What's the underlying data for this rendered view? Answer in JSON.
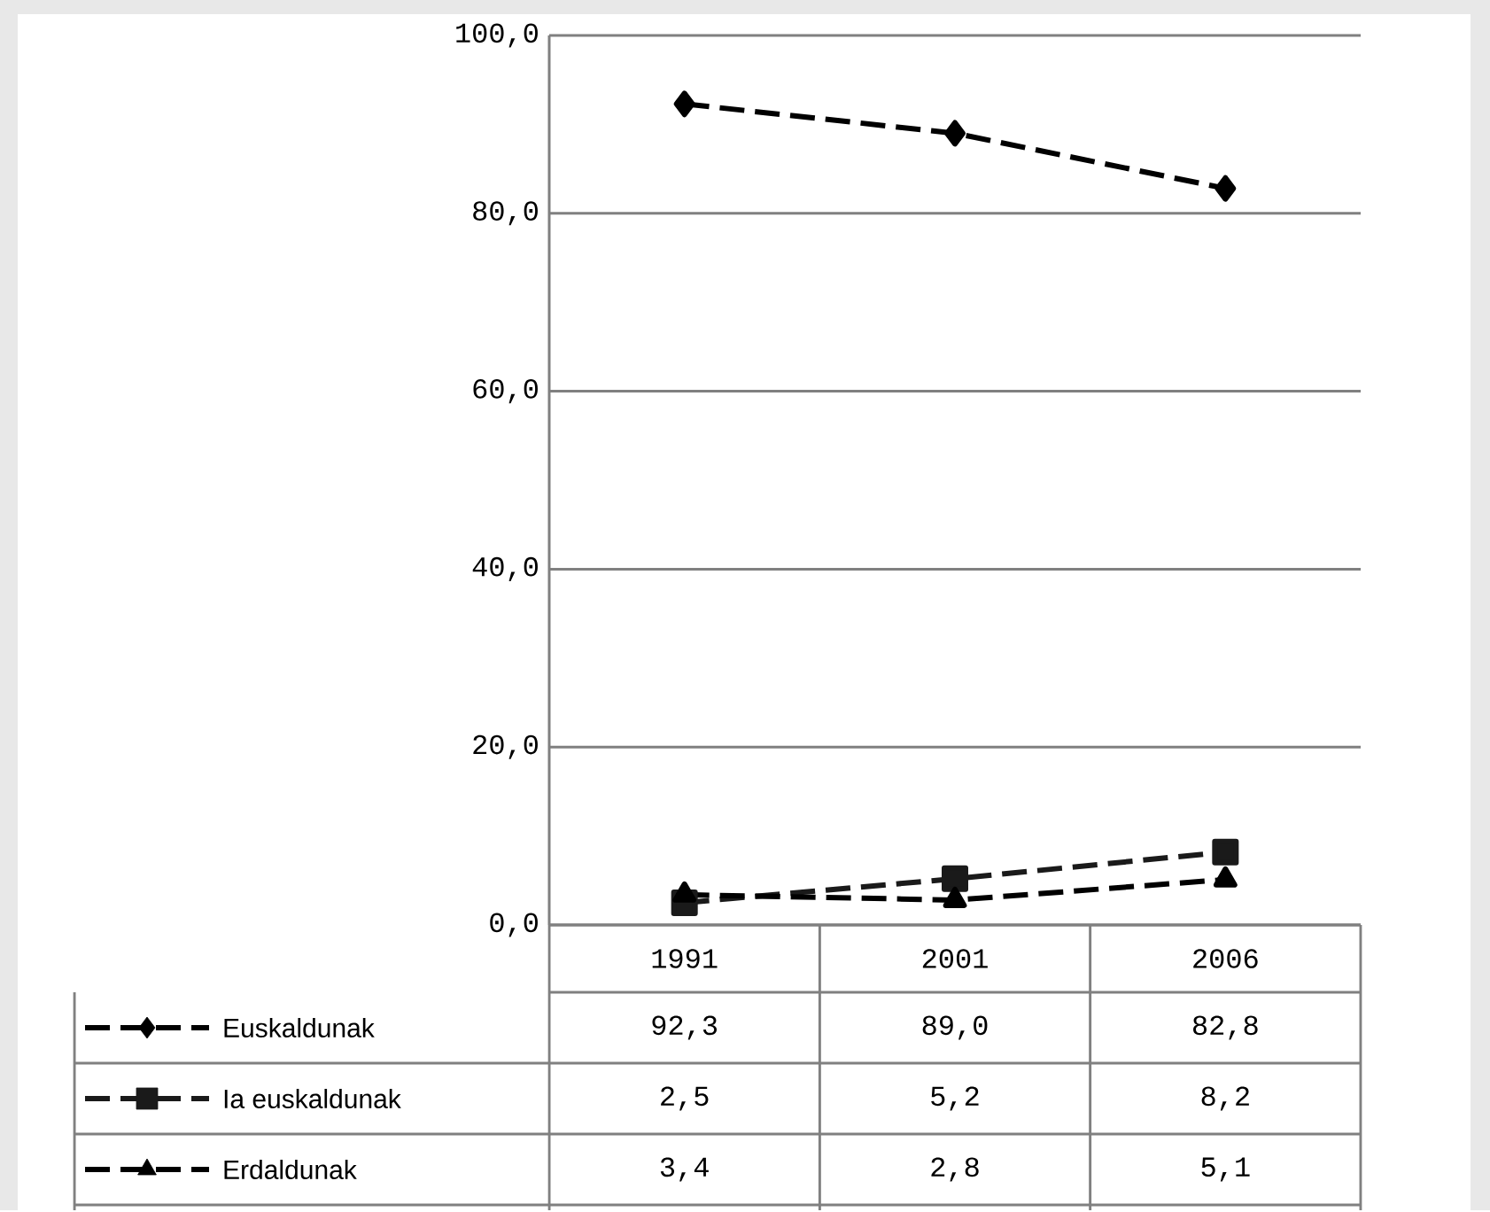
{
  "chart_data": {
    "type": "line",
    "categories": [
      "1991",
      "2001",
      "2006"
    ],
    "series": [
      {
        "name": "Euskaldunak",
        "color": "#000000",
        "marker": "diamond",
        "line_style": "dashed",
        "values": [
          92.3,
          89.0,
          82.8
        ],
        "value_labels": [
          "92,3",
          "89,0",
          "82,8"
        ]
      },
      {
        "name": "Ia euskaldunak",
        "color": "#1a1a1a",
        "marker": "square",
        "line_style": "dashed",
        "values": [
          2.5,
          5.2,
          8.2
        ],
        "value_labels": [
          "2,5",
          "5,2",
          "8,2"
        ]
      },
      {
        "name": "Erdaldunak",
        "color": "#000000",
        "marker": "triangle",
        "line_style": "dashed",
        "values": [
          3.4,
          2.8,
          5.1
        ],
        "value_labels": [
          "3,4",
          "2,8",
          "5,1"
        ]
      }
    ],
    "ylim": [
      0,
      100
    ],
    "yticks": [
      {
        "value": 0,
        "label": "0,0"
      },
      {
        "value": 20,
        "label": "20,0"
      },
      {
        "value": 40,
        "label": "40,0"
      },
      {
        "value": 60,
        "label": "60,0"
      },
      {
        "value": 80,
        "label": "80,0"
      },
      {
        "value": 100,
        "label": "100,0"
      }
    ],
    "grid": "y",
    "legend": "bottom"
  }
}
